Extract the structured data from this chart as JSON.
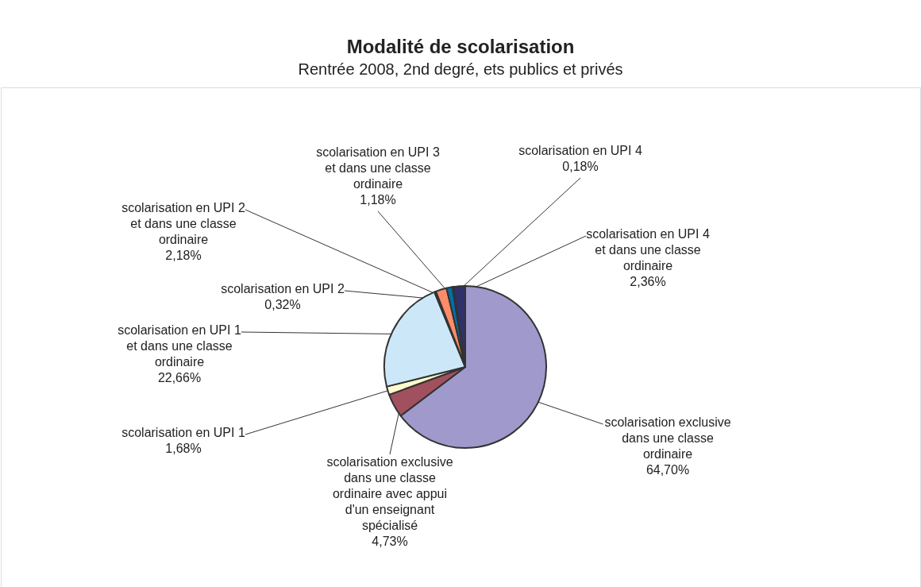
{
  "chart_data": {
    "type": "pie",
    "title": "Modalité de scolarisation",
    "subtitle": "Rentrée 2008, 2nd degré, ets publics et privés",
    "categories": [
      "scolarisation exclusive dans une classe ordinaire",
      "scolarisation exclusive dans une classe ordinaire avec appui d'un enseignant spécialisé",
      "scolarisation en UPI 1",
      "scolarisation en UPI 1 et dans une classe ordinaire",
      "scolarisation en UPI 2",
      "scolarisation en UPI 2 et dans une classe ordinaire",
      "scolarisation en UPI 3 et dans une classe ordinaire",
      "scolarisation en UPI 4",
      "scolarisation en UPI 4 et dans une classe ordinaire"
    ],
    "values": [
      64.7,
      4.73,
      1.68,
      22.66,
      0.32,
      2.18,
      1.18,
      0.18,
      2.36
    ],
    "value_labels": [
      "64,70%",
      "4,73%",
      "1,68%",
      "22,66%",
      "0,32%",
      "2,18%",
      "1,18%",
      "0,18%",
      "2,36%"
    ],
    "colors": [
      "#9f99cc",
      "#a0505e",
      "#fffacc",
      "#cce8f8",
      "#333333",
      "#ff8c69",
      "#0070a8",
      "#4aa0a8",
      "#30306a"
    ],
    "legend": false
  }
}
